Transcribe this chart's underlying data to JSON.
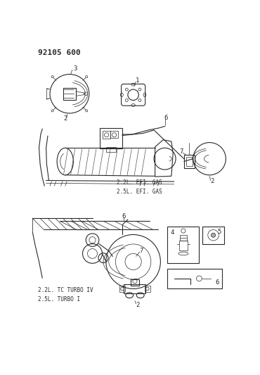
{
  "title": "92105 600",
  "bg_color": "#ffffff",
  "line_color": "#2a2a2a",
  "figsize": [
    3.7,
    5.33
  ],
  "dpi": 100,
  "lw_thin": 0.5,
  "lw_med": 0.8,
  "lw_thick": 1.2,
  "labels": [
    "1",
    "2",
    "3",
    "4",
    "5",
    "6",
    "7"
  ],
  "text_efi_gas": "2.2L. EFI. GAS\n2.5L. EFI. GAS",
  "text_turbo": "2.2L. TC TURBO IV\n2.5L. TURBO I",
  "title_fontsize": 8,
  "label_fontsize": 6.5,
  "anno_fontsize": 5.5
}
